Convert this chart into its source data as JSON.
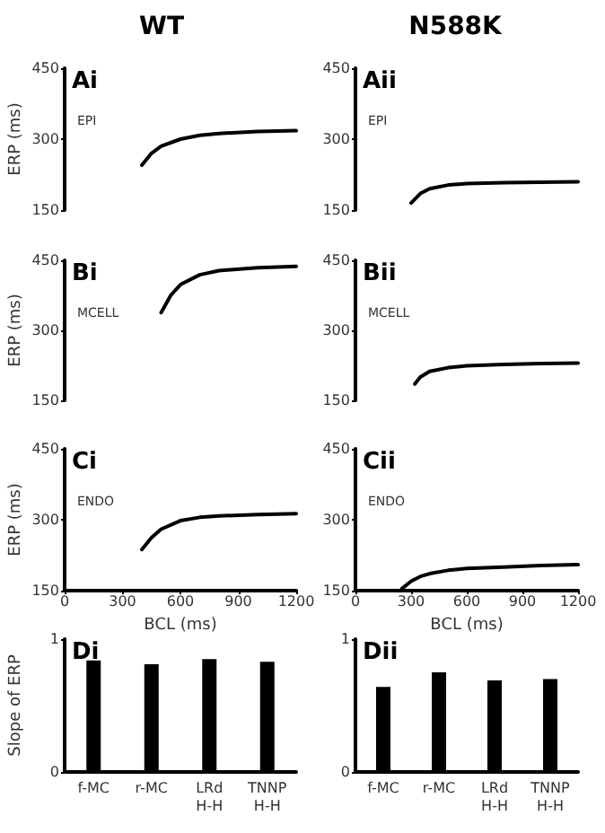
{
  "chart_data": [
    {
      "type": "line",
      "title": "WT",
      "ylabel": "ERP (ms)",
      "annotations": [
        "Ai",
        "EPI"
      ],
      "xlim": [
        0,
        1200
      ],
      "ylim": [
        150,
        450
      ],
      "yticks": [
        150,
        300,
        450
      ],
      "tick_labels": "y",
      "marker": "none",
      "line_style": "solid",
      "grid": false,
      "series": [
        {
          "color": "#000000",
          "x": [
            400,
            450,
            500,
            600,
            700,
            800,
            1000,
            1200
          ],
          "values": [
            245,
            270,
            285,
            300,
            308,
            312,
            316,
            318
          ]
        }
      ]
    },
    {
      "type": "line",
      "title": "N588K",
      "annotations": [
        "Aii",
        "EPI"
      ],
      "xlim": [
        0,
        1200
      ],
      "ylim": [
        150,
        450
      ],
      "yticks": [
        150,
        300,
        450
      ],
      "tick_labels": "y",
      "marker": "none",
      "line_style": "solid",
      "grid": false,
      "series": [
        {
          "color": "#000000",
          "x": [
            300,
            350,
            400,
            500,
            600,
            800,
            1000,
            1200
          ],
          "values": [
            165,
            185,
            195,
            203,
            206,
            208,
            209,
            210
          ]
        }
      ]
    },
    {
      "type": "line",
      "ylabel": "ERP (ms)",
      "annotations": [
        "Bi",
        "MCELL"
      ],
      "xlim": [
        0,
        1200
      ],
      "ylim": [
        150,
        450
      ],
      "yticks": [
        150,
        300,
        450
      ],
      "tick_labels": "y",
      "marker": "none",
      "line_style": "solid",
      "grid": false,
      "series": [
        {
          "color": "#000000",
          "x": [
            500,
            550,
            600,
            700,
            800,
            1000,
            1200
          ],
          "values": [
            338,
            375,
            398,
            419,
            428,
            434,
            437
          ]
        }
      ]
    },
    {
      "type": "line",
      "annotations": [
        "Bii",
        "MCELL"
      ],
      "xlim": [
        0,
        1200
      ],
      "ylim": [
        150,
        450
      ],
      "yticks": [
        150,
        300,
        450
      ],
      "tick_labels": "y",
      "marker": "none",
      "line_style": "solid",
      "grid": false,
      "series": [
        {
          "color": "#000000",
          "x": [
            320,
            350,
            400,
            500,
            600,
            800,
            1000,
            1200
          ],
          "values": [
            185,
            200,
            212,
            220,
            224,
            227,
            229,
            230
          ]
        }
      ]
    },
    {
      "type": "line",
      "ylabel": "ERP (ms)",
      "xlabel": "BCL (ms)",
      "annotations": [
        "Ci",
        "ENDO"
      ],
      "xlim": [
        0,
        1200
      ],
      "xticks": [
        0,
        300,
        600,
        900,
        1200
      ],
      "ylim": [
        150,
        450
      ],
      "yticks": [
        150,
        300,
        450
      ],
      "marker": "none",
      "line_style": "solid",
      "grid": false,
      "series": [
        {
          "color": "#000000",
          "x": [
            400,
            450,
            500,
            600,
            700,
            800,
            1000,
            1200
          ],
          "values": [
            237,
            262,
            280,
            298,
            305,
            308,
            311,
            313
          ]
        }
      ]
    },
    {
      "type": "line",
      "xlabel": "BCL (ms)",
      "annotations": [
        "Cii",
        "ENDO"
      ],
      "xlim": [
        0,
        1200
      ],
      "xticks": [
        0,
        300,
        600,
        900,
        1200
      ],
      "ylim": [
        150,
        450
      ],
      "yticks": [
        150,
        300,
        450
      ],
      "marker": "none",
      "line_style": "solid",
      "grid": false,
      "series": [
        {
          "color": "#000000",
          "x": [
            250,
            300,
            350,
            400,
            500,
            600,
            800,
            1000,
            1200
          ],
          "values": [
            154,
            170,
            180,
            186,
            193,
            197,
            200,
            203,
            205
          ]
        }
      ]
    },
    {
      "type": "bar",
      "ylabel": "Slope of ERP",
      "annotations": [
        "Di"
      ],
      "categories": [
        "f-MC",
        "r-MC",
        "LRd\nH-H",
        "TNNP\nH-H"
      ],
      "ylim": [
        0,
        1
      ],
      "yticks": [
        0,
        1
      ],
      "grid": false,
      "series": [
        {
          "color": "#000000",
          "values": [
            0.84,
            0.81,
            0.85,
            0.83
          ]
        }
      ]
    },
    {
      "type": "bar",
      "annotations": [
        "Dii"
      ],
      "categories": [
        "f-MC",
        "r-MC",
        "LRd\nH-H",
        "TNNP\nH-H"
      ],
      "ylim": [
        0,
        1
      ],
      "yticks": [
        0,
        1
      ],
      "grid": false,
      "series": [
        {
          "color": "#000000",
          "values": [
            0.64,
            0.75,
            0.69,
            0.7
          ]
        }
      ]
    }
  ]
}
